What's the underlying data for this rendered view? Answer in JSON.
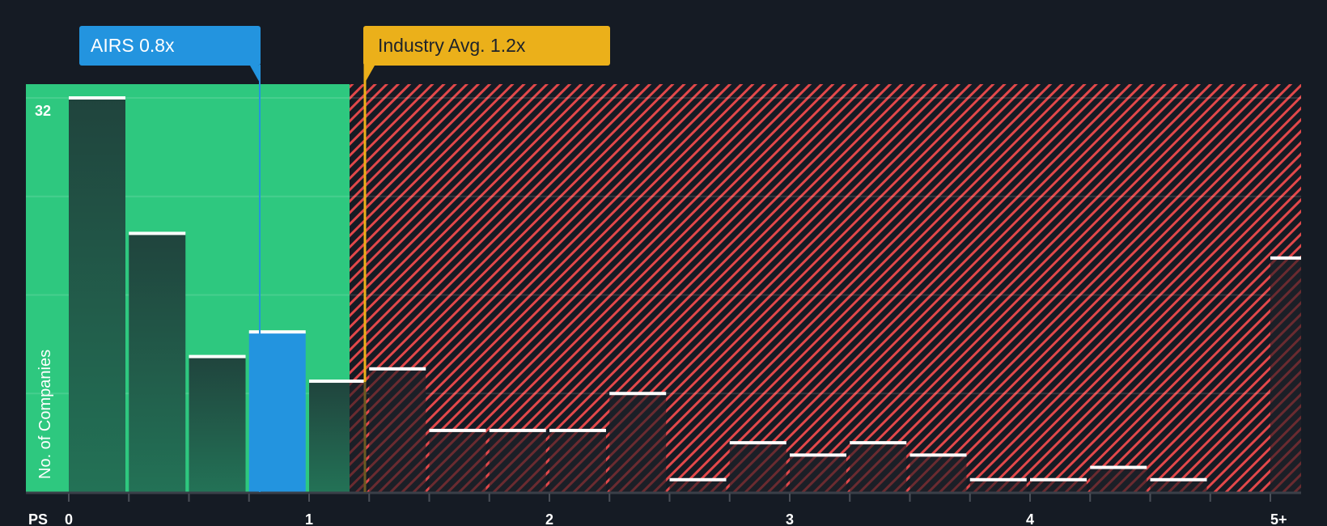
{
  "chart_data": {
    "type": "bar",
    "title": "",
    "xlabel": "PS",
    "ylabel": "No. of Companies",
    "x_tick_labels": [
      "0",
      "1",
      "2",
      "3",
      "4",
      "5+"
    ],
    "y_tick_labels": [
      "32"
    ],
    "ylim": [
      0,
      33
    ],
    "grid": true,
    "bin_width": 0.25,
    "categories": [
      "0-0.25",
      "0.25-0.5",
      "0.5-0.75",
      "0.75-1.0",
      "1.0-1.25",
      "1.25-1.5",
      "1.5-1.75",
      "1.75-2.0",
      "2.0-2.25",
      "2.25-2.5",
      "2.5-2.75",
      "2.75-3.0",
      "3.0-3.25",
      "3.25-3.5",
      "3.5-3.75",
      "3.75-4.0",
      "4.0-4.25",
      "4.25-4.5",
      "4.5-4.75",
      "5+"
    ],
    "values": [
      32,
      21,
      11,
      13,
      9,
      10,
      5,
      5,
      5,
      8,
      1,
      4,
      3,
      4,
      3,
      1,
      1,
      2,
      1,
      19
    ],
    "highlight_index": 3,
    "annotations": [
      {
        "label": "AIRS 0.8x",
        "value": 0.8,
        "color": "#2394df"
      },
      {
        "label": "Industry Avg. 1.2x",
        "value": 1.2,
        "color": "#ebb01a"
      }
    ],
    "regions": [
      {
        "name": "undervalued",
        "from": 0,
        "to": 1.17,
        "color": "#2ec87f"
      },
      {
        "name": "overvalued",
        "from": 1.17,
        "to": 5.3,
        "color": "#e2484a"
      }
    ]
  },
  "labels": {
    "company": "AIRS 0.8x",
    "industry": "Industry Avg. 1.2x",
    "y_axis": "No. of Companies",
    "x_axis": "PS",
    "y_max": "32"
  },
  "colors": {
    "background": "#151b24",
    "green": "#2ec87f",
    "blue": "#2394df",
    "gold": "#ebb01a",
    "red": "#e2484a",
    "bar_dark": "#204a3f"
  }
}
